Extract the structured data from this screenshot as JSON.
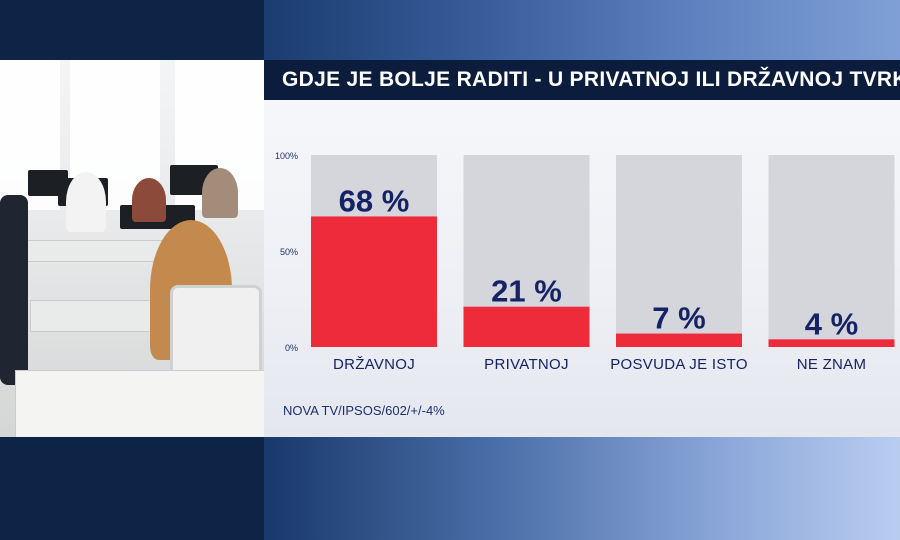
{
  "title": "GDJE JE BOLJE RADITI - U PRIVATNOJ ILI DRŽAVNOJ TVRKI",
  "source": "NOVA TV/IPSOS/602/+/-4%",
  "colors": {
    "bar": "#ee2b3b",
    "track": "#d4d6dc",
    "value_text": "#152364",
    "title_bg": "#0b1c3c"
  },
  "chart_data": {
    "type": "bar",
    "categories": [
      "DRŽAVNOJ",
      "PRIVATNOJ",
      "POSVUDA JE ISTO",
      "NE ZNAM"
    ],
    "values": [
      68,
      21,
      7,
      4
    ],
    "value_labels": [
      "68 %",
      "21 %",
      "7 %",
      "4 %"
    ],
    "ylim": [
      0,
      100
    ],
    "yticks": [
      {
        "value": 100,
        "label": "100%"
      },
      {
        "value": 50,
        "label": "50%"
      },
      {
        "value": 0,
        "label": "0%"
      }
    ],
    "grid": false,
    "title": "GDJE JE BOLJE RADITI - U PRIVATNOJ ILI DRŽAVNOJ TVRKI"
  }
}
